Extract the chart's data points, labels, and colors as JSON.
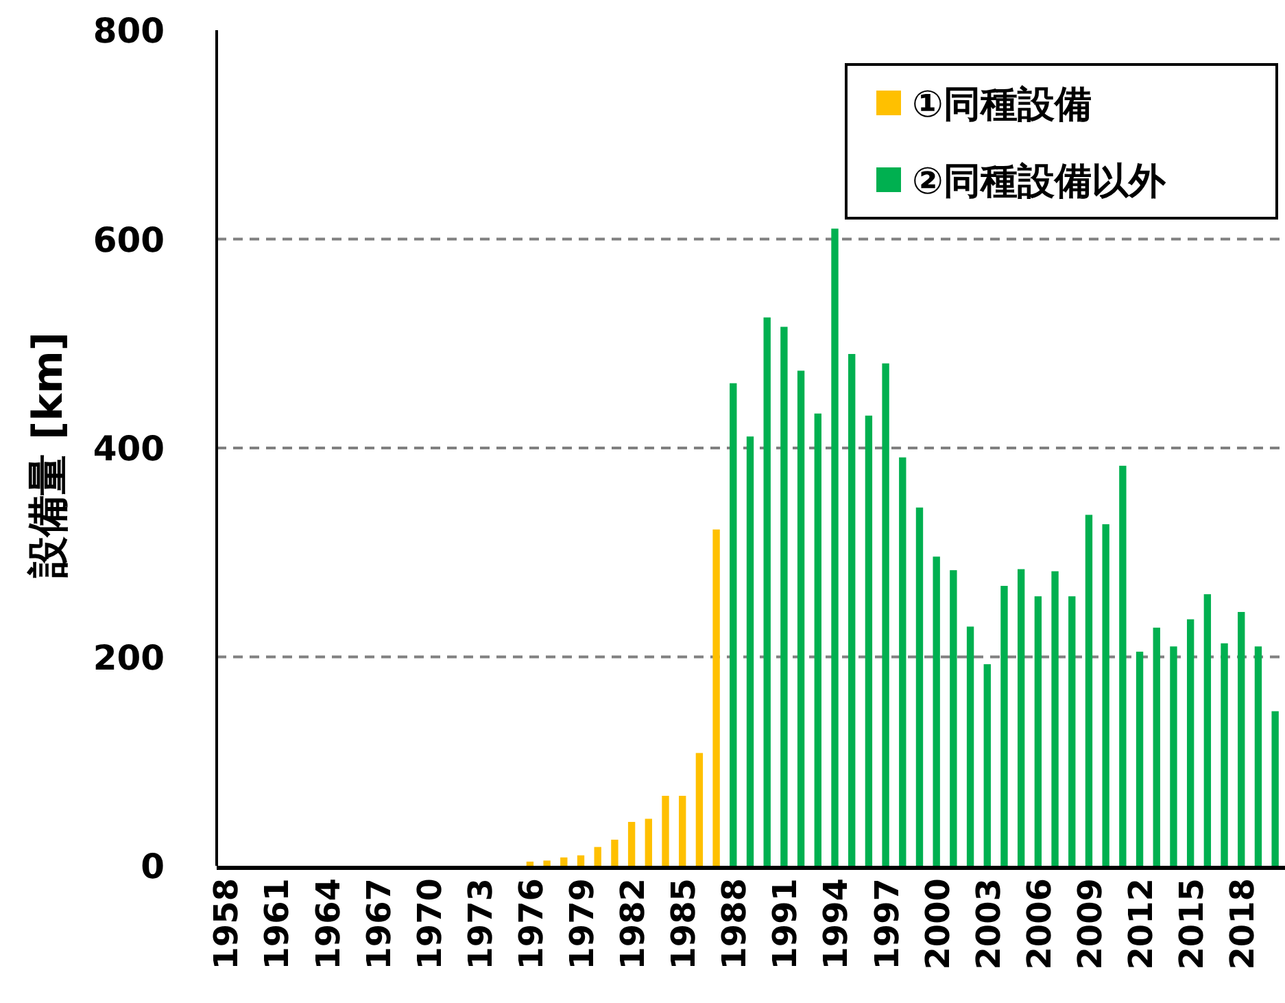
{
  "chart_data": {
    "type": "bar",
    "ylabel": "設備量 [km]",
    "categories": [
      "1958",
      null,
      null,
      "1961",
      null,
      null,
      "1964",
      null,
      null,
      "1967",
      null,
      null,
      "1970",
      null,
      null,
      "1973",
      null,
      null,
      "1976",
      null,
      null,
      "1979",
      null,
      null,
      "1982",
      null,
      null,
      "1985",
      null,
      null,
      "1988",
      null,
      null,
      "1991",
      null,
      null,
      "1994",
      null,
      null,
      "1997",
      null,
      null,
      "2000",
      null,
      null,
      "2003",
      null,
      null,
      "2006",
      null,
      null,
      "2009",
      null,
      null,
      "2012",
      null,
      null,
      "2015",
      null,
      null,
      "2018",
      null,
      null
    ],
    "series": [
      {
        "name": "①同種設備",
        "color": "#ffc000",
        "values": [
          0,
          0,
          0,
          0,
          0,
          0,
          0,
          0,
          0,
          0,
          0,
          0,
          0,
          0,
          0,
          0,
          0,
          0,
          4,
          5,
          8,
          10,
          18,
          25,
          42,
          45,
          67,
          67,
          108,
          322,
          null,
          null,
          null,
          null,
          null,
          null,
          null,
          null,
          null,
          null,
          null,
          null,
          null,
          null,
          null,
          null,
          null,
          null,
          null,
          null,
          null,
          null,
          null,
          null,
          null,
          null,
          null,
          null,
          null,
          null,
          null,
          null,
          null
        ]
      },
      {
        "name": "②同種設備以外",
        "color": "#00b050",
        "values": [
          null,
          null,
          null,
          null,
          null,
          null,
          null,
          null,
          null,
          null,
          null,
          null,
          null,
          null,
          null,
          null,
          null,
          null,
          null,
          null,
          null,
          null,
          null,
          null,
          null,
          null,
          null,
          null,
          null,
          null,
          462,
          411,
          525,
          516,
          474,
          433,
          610,
          490,
          431,
          481,
          391,
          343,
          296,
          283,
          229,
          193,
          268,
          284,
          258,
          282,
          258,
          336,
          327,
          383,
          205,
          228,
          210,
          236,
          260,
          213,
          243,
          210,
          148
        ]
      }
    ],
    "ylim": [
      0,
      800
    ],
    "yticks": [
      0,
      200,
      400,
      600,
      800
    ],
    "grid": "y",
    "legend": "top right"
  }
}
